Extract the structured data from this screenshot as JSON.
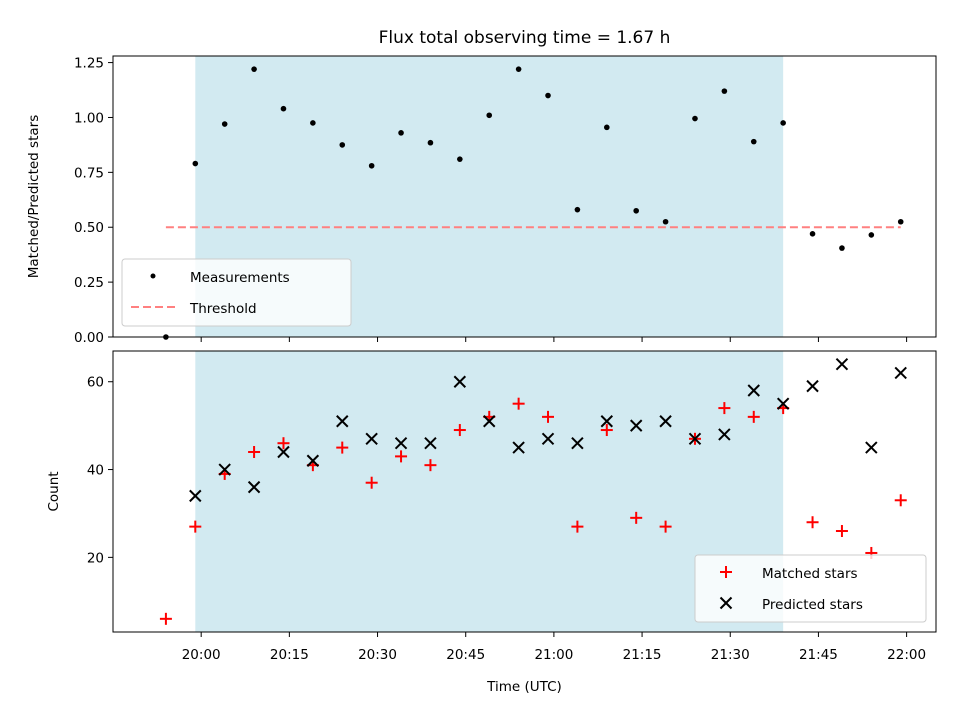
{
  "chart_data": {
    "type": "scatter",
    "title": "Flux total observing time = 1.67 h",
    "xlabel": "Time (UTC)",
    "x_ticks": [
      "20:00",
      "20:15",
      "20:30",
      "20:45",
      "21:00",
      "21:15",
      "21:30",
      "21:45",
      "22:00"
    ],
    "x_range": [
      "19:45",
      "22:05"
    ],
    "shaded_interval": [
      "19:59",
      "21:39"
    ],
    "shade_color": "#add8e6",
    "top": {
      "ylabel": "Matched/Predicted stars",
      "ylim": [
        0,
        1.28
      ],
      "y_ticks": [
        "0.00",
        "0.25",
        "0.50",
        "0.75",
        "1.00",
        "1.25"
      ],
      "series": [
        {
          "name": "Measurements",
          "color": "#000000",
          "marker": "dot",
          "x": [
            "19:54",
            "19:59",
            "20:04",
            "20:09",
            "20:14",
            "20:19",
            "20:24",
            "20:29",
            "20:34",
            "20:39",
            "20:44",
            "20:49",
            "20:54",
            "20:59",
            "21:04",
            "21:09",
            "21:14",
            "21:19",
            "21:24",
            "21:29",
            "21:34",
            "21:39",
            "21:44",
            "21:49",
            "21:54",
            "21:59"
          ],
          "y": [
            0.0,
            0.79,
            0.97,
            1.22,
            1.04,
            0.975,
            0.875,
            0.78,
            0.93,
            0.885,
            0.81,
            1.01,
            1.22,
            1.1,
            0.58,
            0.955,
            0.575,
            0.525,
            0.995,
            1.12,
            0.89,
            0.975,
            0.47,
            0.405,
            0.465,
            0.525
          ]
        },
        {
          "name": "Threshold",
          "color": "#ff8080",
          "style": "dashed",
          "x": [
            "19:54",
            "21:59"
          ],
          "y": [
            0.5,
            0.5
          ]
        }
      ],
      "legend_position": "lower-left"
    },
    "bottom": {
      "ylabel": "Count",
      "ylim": [
        3,
        67
      ],
      "y_ticks": [
        "20",
        "40",
        "60"
      ],
      "series": [
        {
          "name": "Matched stars",
          "color": "#ff0000",
          "marker": "plus",
          "x": [
            "19:54",
            "19:59",
            "20:04",
            "20:09",
            "20:14",
            "20:19",
            "20:24",
            "20:29",
            "20:34",
            "20:39",
            "20:44",
            "20:49",
            "20:54",
            "20:59",
            "21:04",
            "21:09",
            "21:14",
            "21:19",
            "21:24",
            "21:29",
            "21:34",
            "21:39",
            "21:44",
            "21:49",
            "21:54",
            "21:59"
          ],
          "y": [
            6,
            27,
            39,
            44,
            46,
            41,
            45,
            37,
            43,
            41,
            49,
            52,
            55,
            52,
            27,
            49,
            29,
            27,
            47,
            54,
            52,
            54,
            28,
            26,
            21,
            33
          ]
        },
        {
          "name": "Predicted stars",
          "color": "#000000",
          "marker": "x",
          "x": [
            "19:59",
            "20:04",
            "20:09",
            "20:14",
            "20:19",
            "20:24",
            "20:29",
            "20:34",
            "20:39",
            "20:44",
            "20:49",
            "20:54",
            "20:59",
            "21:04",
            "21:09",
            "21:14",
            "21:19",
            "21:24",
            "21:29",
            "21:34",
            "21:39",
            "21:44",
            "21:49",
            "21:54",
            "21:59"
          ],
          "y": [
            34,
            40,
            36,
            44,
            42,
            51,
            47,
            46,
            46,
            60,
            51,
            45,
            47,
            46,
            51,
            50,
            51,
            47,
            48,
            58,
            55,
            59,
            64,
            45,
            62
          ]
        }
      ],
      "legend_position": "lower-right"
    }
  }
}
